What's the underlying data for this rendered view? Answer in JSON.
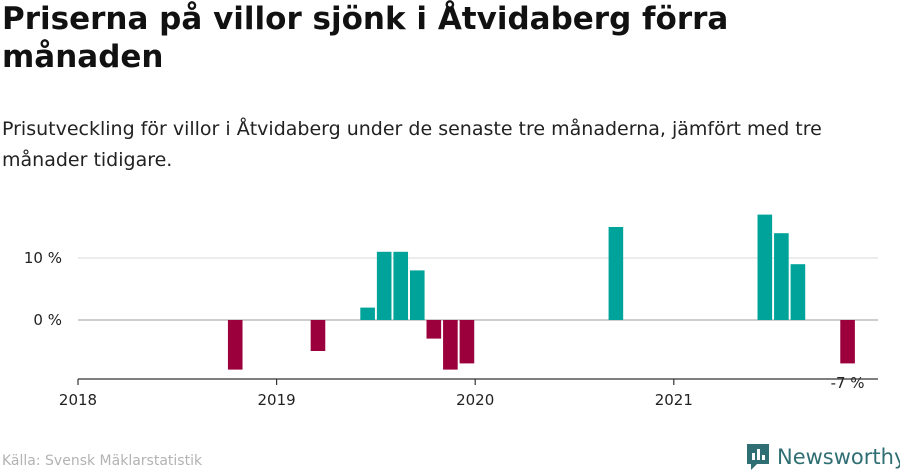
{
  "header": {
    "title": "Priserna på villor sjönk i Åtvidaberg förra månaden",
    "subtitle": "Prisutveckling för villor i Åtvidaberg under de senaste tre månaderna, jämfört med tre månader tidigare."
  },
  "footer": {
    "source": "Källa: Svensk Mäklarstatistik",
    "brand": "Newsworthy"
  },
  "colors": {
    "positive": "#00a39a",
    "negative": "#9b003c",
    "grid": "#d9d9d9",
    "axis": "#333333"
  },
  "chart_data": {
    "type": "bar",
    "title": "Priserna på villor sjönk i Åtvidaberg förra månaden",
    "xlabel": "",
    "ylabel": "",
    "ylim": [
      -10,
      18
    ],
    "y_ticks": [
      {
        "value": 0,
        "label": "0 %"
      },
      {
        "value": 10,
        "label": "10 %"
      }
    ],
    "x_ticks": [
      "2018",
      "2019",
      "2020",
      "2021"
    ],
    "x_range": [
      "2018-01",
      "2021-12"
    ],
    "last_value_label": "-7 %",
    "series": [
      {
        "values": [
          {
            "date": "2018-10",
            "value": -8
          },
          {
            "date": "2019-03",
            "value": -5
          },
          {
            "date": "2019-06",
            "value": 2
          },
          {
            "date": "2019-07",
            "value": 11
          },
          {
            "date": "2019-08",
            "value": 11
          },
          {
            "date": "2019-09",
            "value": 8
          },
          {
            "date": "2019-10",
            "value": -3
          },
          {
            "date": "2019-11",
            "value": -8
          },
          {
            "date": "2019-12",
            "value": -7
          },
          {
            "date": "2020-09",
            "value": 15
          },
          {
            "date": "2021-06",
            "value": 17
          },
          {
            "date": "2021-07",
            "value": 14
          },
          {
            "date": "2021-08",
            "value": 9
          },
          {
            "date": "2021-11",
            "value": -7
          }
        ]
      }
    ]
  }
}
